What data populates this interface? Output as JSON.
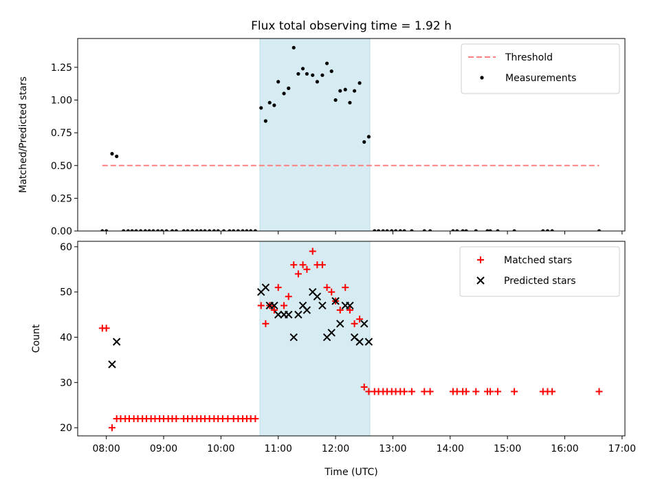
{
  "chart_data": [
    {
      "type": "scatter",
      "title": "Flux total observing time = 1.92 h",
      "xlabel": "",
      "ylabel": "Matched/Predicted stars",
      "xlim": [
        7.5,
        17.05
      ],
      "ylim": [
        0,
        1.47
      ],
      "yticks": [
        0,
        0.25,
        0.5,
        0.75,
        1.0,
        1.25
      ],
      "ytick_labels": [
        "0.00",
        "0.25",
        "0.50",
        "0.75",
        "1.00",
        "1.25"
      ],
      "legend": "top-right",
      "shaded_span": {
        "x": [
          10.68,
          12.6
        ],
        "color": "#add8e6"
      },
      "threshold": {
        "name": "Threshold",
        "y": 0.5,
        "x": [
          7.93,
          16.6
        ],
        "color": "#ff7f7f"
      },
      "series": [
        {
          "name": "Measurements",
          "color": "#000000",
          "marker": "dot",
          "points": [
            [
              7.93,
              0
            ],
            [
              8.0,
              0
            ],
            [
              8.1,
              0.59
            ],
            [
              8.18,
              0.57
            ],
            [
              8.3,
              0
            ],
            [
              8.38,
              0
            ],
            [
              8.45,
              0
            ],
            [
              8.52,
              0
            ],
            [
              8.6,
              0
            ],
            [
              8.68,
              0
            ],
            [
              8.75,
              0
            ],
            [
              8.82,
              0
            ],
            [
              8.9,
              0
            ],
            [
              8.97,
              0
            ],
            [
              9.05,
              0
            ],
            [
              9.15,
              0
            ],
            [
              9.22,
              0
            ],
            [
              9.35,
              0
            ],
            [
              9.42,
              0
            ],
            [
              9.5,
              0
            ],
            [
              9.58,
              0
            ],
            [
              9.65,
              0
            ],
            [
              9.72,
              0
            ],
            [
              9.8,
              0
            ],
            [
              9.88,
              0
            ],
            [
              9.95,
              0
            ],
            [
              10.05,
              0
            ],
            [
              10.15,
              0
            ],
            [
              10.22,
              0
            ],
            [
              10.3,
              0
            ],
            [
              10.38,
              0
            ],
            [
              10.45,
              0
            ],
            [
              10.52,
              0
            ],
            [
              10.6,
              0
            ],
            [
              10.7,
              0.94
            ],
            [
              10.78,
              0.84
            ],
            [
              10.85,
              0.98
            ],
            [
              10.93,
              0.96
            ],
            [
              11.0,
              1.14
            ],
            [
              11.1,
              1.05
            ],
            [
              11.18,
              1.09
            ],
            [
              11.27,
              1.4
            ],
            [
              11.35,
              1.2
            ],
            [
              11.43,
              1.24
            ],
            [
              11.5,
              1.2
            ],
            [
              11.6,
              1.19
            ],
            [
              11.68,
              1.14
            ],
            [
              11.77,
              1.19
            ],
            [
              11.85,
              1.28
            ],
            [
              11.93,
              1.22
            ],
            [
              12.0,
              1.0
            ],
            [
              12.08,
              1.07
            ],
            [
              12.17,
              1.08
            ],
            [
              12.25,
              0.98
            ],
            [
              12.33,
              1.07
            ],
            [
              12.42,
              1.13
            ],
            [
              12.5,
              0.68
            ],
            [
              12.58,
              0.72
            ],
            [
              12.68,
              0
            ],
            [
              12.75,
              0
            ],
            [
              12.83,
              0
            ],
            [
              12.9,
              0
            ],
            [
              12.98,
              0
            ],
            [
              13.05,
              0
            ],
            [
              13.13,
              0
            ],
            [
              13.2,
              0
            ],
            [
              13.33,
              0
            ],
            [
              13.55,
              0
            ],
            [
              13.65,
              0
            ],
            [
              14.05,
              0
            ],
            [
              14.12,
              0
            ],
            [
              14.22,
              0
            ],
            [
              14.28,
              0
            ],
            [
              14.45,
              0
            ],
            [
              14.65,
              0
            ],
            [
              14.7,
              0
            ],
            [
              14.83,
              0
            ],
            [
              15.12,
              0
            ],
            [
              15.62,
              0
            ],
            [
              15.7,
              0
            ],
            [
              15.78,
              0
            ],
            [
              16.6,
              0
            ]
          ]
        }
      ]
    },
    {
      "type": "scatter",
      "title": "",
      "xlabel": "Time (UTC)",
      "ylabel": "Count",
      "xlim": [
        7.5,
        17.05
      ],
      "ylim": [
        18.2,
        61.2
      ],
      "yticks": [
        20,
        30,
        40,
        50,
        60
      ],
      "ytick_labels": [
        "20",
        "30",
        "40",
        "50",
        "60"
      ],
      "xticks": [
        8,
        9,
        10,
        11,
        12,
        13,
        14,
        15,
        16,
        17
      ],
      "xtick_labels": [
        "08:00",
        "09:00",
        "10:00",
        "11:00",
        "12:00",
        "13:00",
        "14:00",
        "15:00",
        "16:00",
        "17:00"
      ],
      "legend": "top-right",
      "shaded_span": {
        "x": [
          10.68,
          12.6
        ],
        "color": "#add8e6"
      },
      "series": [
        {
          "name": "Matched stars",
          "color": "#ff0000",
          "marker": "plus",
          "points": [
            [
              7.93,
              42
            ],
            [
              8.0,
              42
            ],
            [
              8.1,
              20
            ],
            [
              8.18,
              22
            ],
            [
              8.25,
              22
            ],
            [
              8.33,
              22
            ],
            [
              8.4,
              22
            ],
            [
              8.48,
              22
            ],
            [
              8.55,
              22
            ],
            [
              8.63,
              22
            ],
            [
              8.7,
              22
            ],
            [
              8.78,
              22
            ],
            [
              8.85,
              22
            ],
            [
              8.93,
              22
            ],
            [
              9.0,
              22
            ],
            [
              9.08,
              22
            ],
            [
              9.15,
              22
            ],
            [
              9.22,
              22
            ],
            [
              9.35,
              22
            ],
            [
              9.42,
              22
            ],
            [
              9.5,
              22
            ],
            [
              9.58,
              22
            ],
            [
              9.65,
              22
            ],
            [
              9.72,
              22
            ],
            [
              9.8,
              22
            ],
            [
              9.88,
              22
            ],
            [
              9.95,
              22
            ],
            [
              10.03,
              22
            ],
            [
              10.12,
              22
            ],
            [
              10.22,
              22
            ],
            [
              10.3,
              22
            ],
            [
              10.38,
              22
            ],
            [
              10.45,
              22
            ],
            [
              10.52,
              22
            ],
            [
              10.6,
              22
            ],
            [
              10.7,
              47
            ],
            [
              10.78,
              43
            ],
            [
              10.85,
              47
            ],
            [
              10.93,
              46
            ],
            [
              11.0,
              51
            ],
            [
              11.1,
              47
            ],
            [
              11.18,
              49
            ],
            [
              11.27,
              56
            ],
            [
              11.35,
              54
            ],
            [
              11.43,
              56
            ],
            [
              11.5,
              55
            ],
            [
              11.6,
              59
            ],
            [
              11.68,
              56
            ],
            [
              11.77,
              56
            ],
            [
              11.85,
              51
            ],
            [
              11.93,
              50
            ],
            [
              12.0,
              48
            ],
            [
              12.08,
              46
            ],
            [
              12.17,
              51
            ],
            [
              12.25,
              46
            ],
            [
              12.33,
              43
            ],
            [
              12.42,
              44
            ],
            [
              12.5,
              29
            ],
            [
              12.58,
              28
            ],
            [
              12.68,
              28
            ],
            [
              12.75,
              28
            ],
            [
              12.83,
              28
            ],
            [
              12.9,
              28
            ],
            [
              12.98,
              28
            ],
            [
              13.05,
              28
            ],
            [
              13.13,
              28
            ],
            [
              13.2,
              28
            ],
            [
              13.33,
              28
            ],
            [
              13.55,
              28
            ],
            [
              13.65,
              28
            ],
            [
              14.05,
              28
            ],
            [
              14.12,
              28
            ],
            [
              14.22,
              28
            ],
            [
              14.28,
              28
            ],
            [
              14.45,
              28
            ],
            [
              14.65,
              28
            ],
            [
              14.7,
              28
            ],
            [
              14.83,
              28
            ],
            [
              15.12,
              28
            ],
            [
              15.62,
              28
            ],
            [
              15.7,
              28
            ],
            [
              15.78,
              28
            ],
            [
              16.6,
              28
            ]
          ]
        },
        {
          "name": "Predicted stars",
          "color": "#000000",
          "marker": "x",
          "points": [
            [
              8.1,
              34
            ],
            [
              8.18,
              39
            ],
            [
              10.7,
              50
            ],
            [
              10.78,
              51
            ],
            [
              10.85,
              47
            ],
            [
              10.93,
              47
            ],
            [
              11.0,
              45
            ],
            [
              11.1,
              45
            ],
            [
              11.18,
              45
            ],
            [
              11.27,
              40
            ],
            [
              11.35,
              45
            ],
            [
              11.43,
              47
            ],
            [
              11.5,
              46
            ],
            [
              11.6,
              50
            ],
            [
              11.68,
              49
            ],
            [
              11.77,
              47
            ],
            [
              11.85,
              40
            ],
            [
              11.93,
              41
            ],
            [
              12.0,
              48
            ],
            [
              12.08,
              43
            ],
            [
              12.17,
              47
            ],
            [
              12.25,
              47
            ],
            [
              12.33,
              40
            ],
            [
              12.42,
              39
            ],
            [
              12.5,
              43
            ],
            [
              12.58,
              39
            ]
          ]
        }
      ]
    }
  ]
}
